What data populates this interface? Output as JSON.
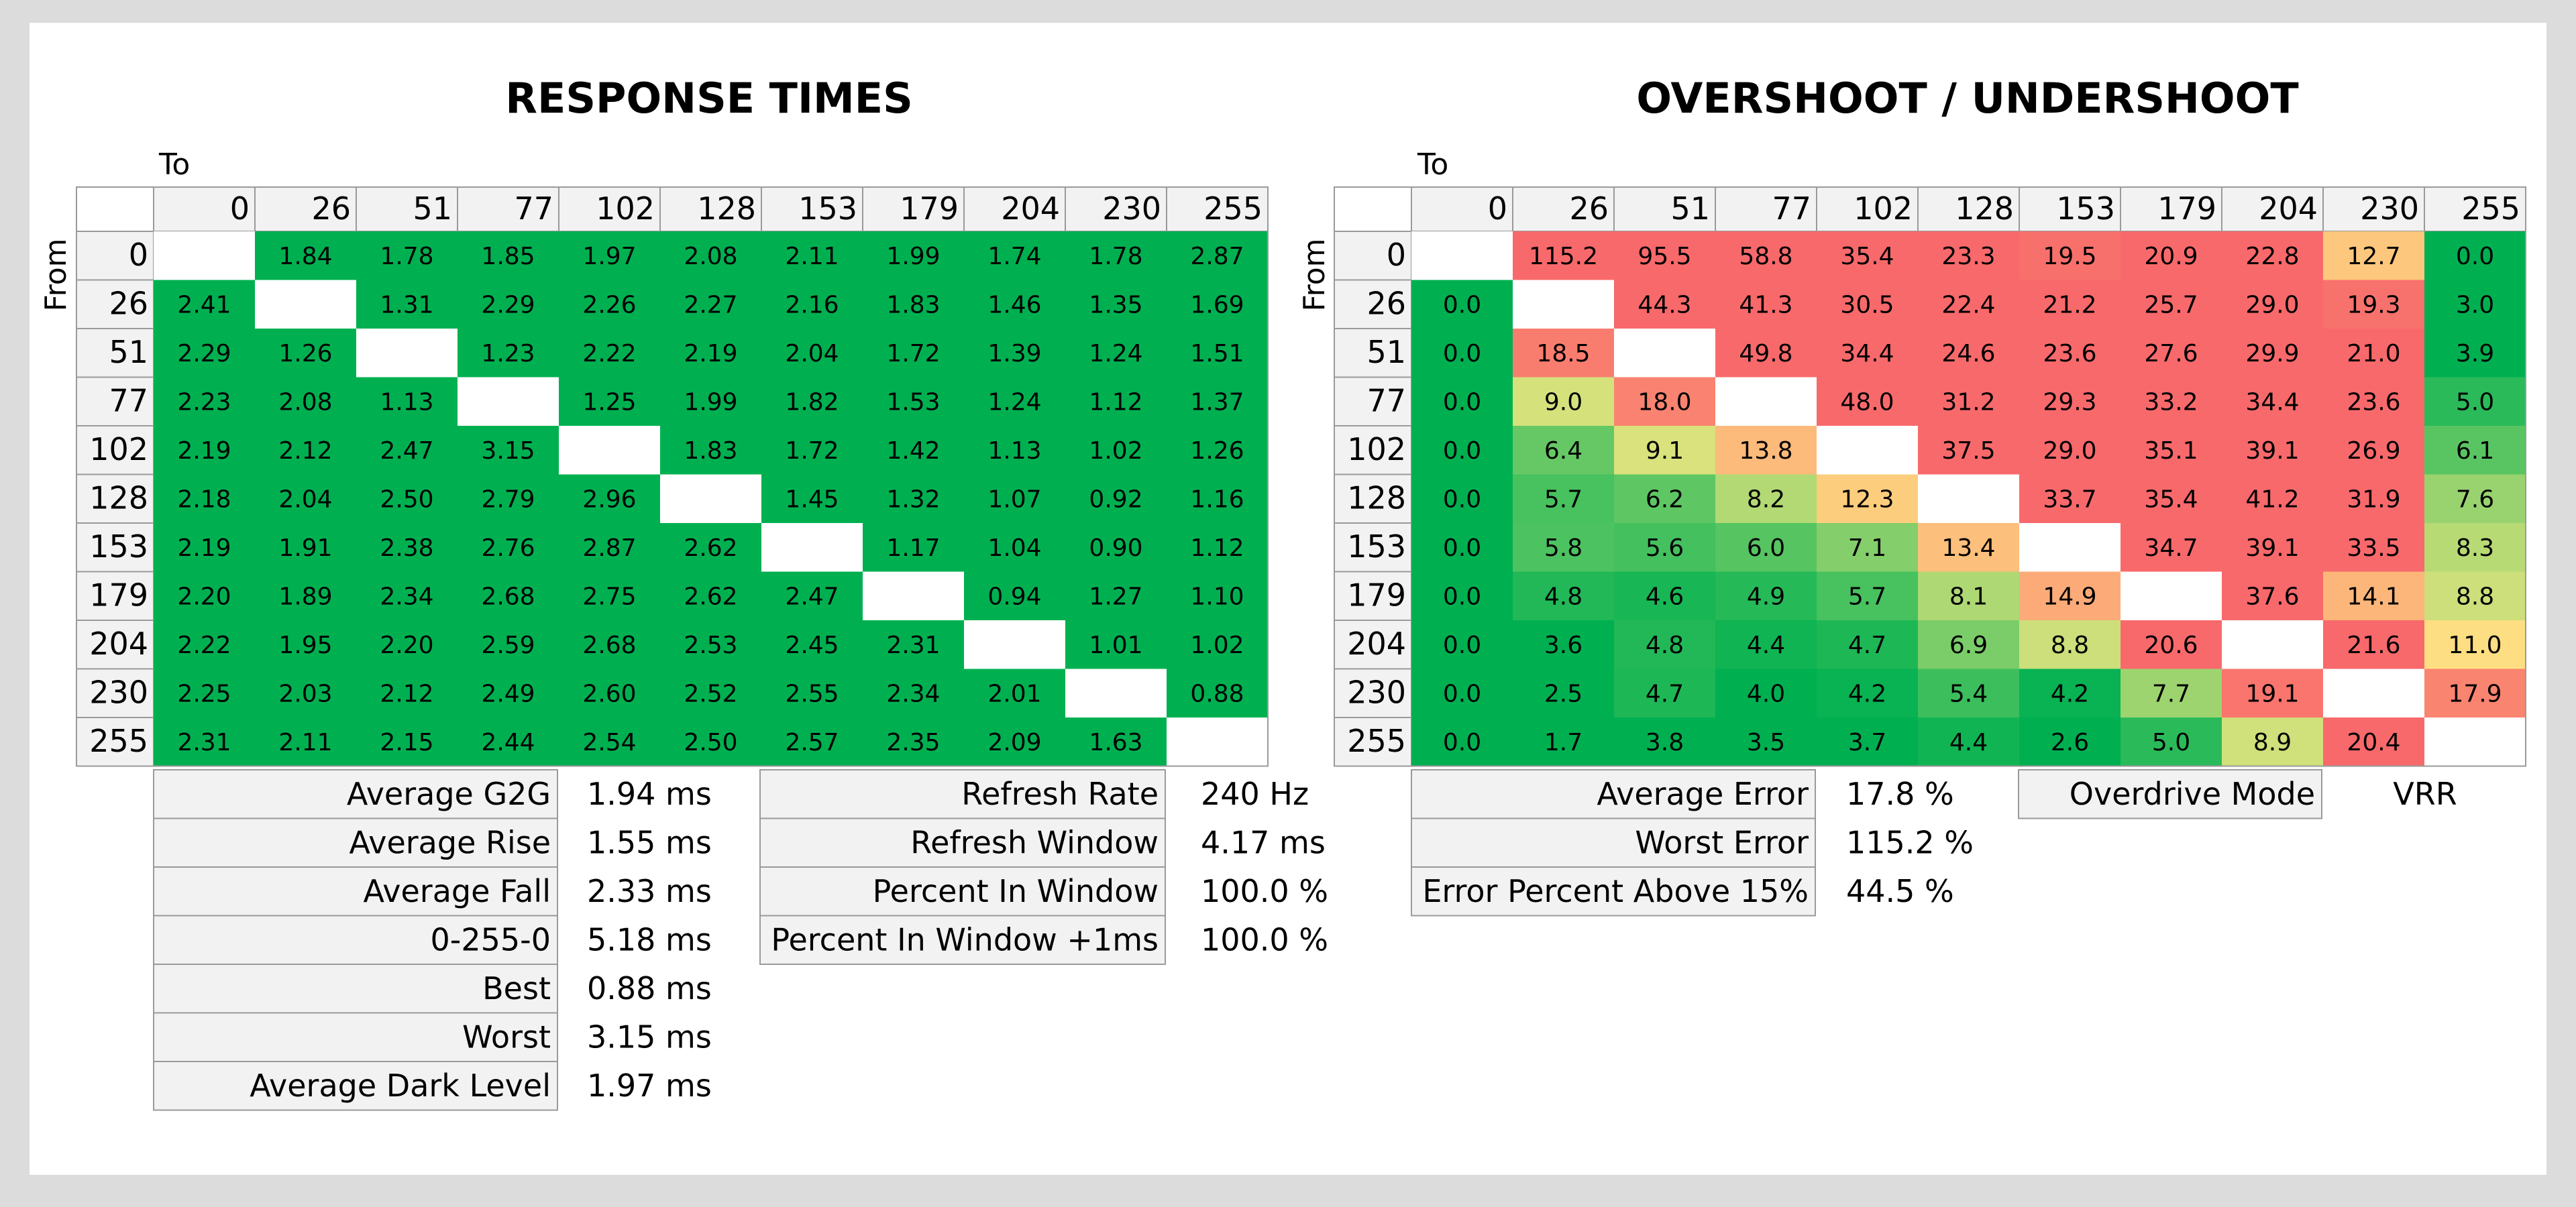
{
  "response_section": {
    "title": "RESPONSE TIMES",
    "to_label": "To",
    "from_label": "From"
  },
  "overshoot_section": {
    "title": "OVERSHOOT / UNDERSHOOT",
    "to_label": "To",
    "from_label": "From"
  },
  "chart_data": [
    {
      "type": "heatmap",
      "title": "RESPONSE TIMES",
      "xlabel": "To",
      "ylabel": "From",
      "x": [
        "0",
        "26",
        "51",
        "77",
        "102",
        "128",
        "153",
        "179",
        "204",
        "230",
        "255"
      ],
      "y": [
        "0",
        "26",
        "51",
        "77",
        "102",
        "128",
        "153",
        "179",
        "204",
        "230",
        "255"
      ],
      "values": [
        [
          null,
          "1.84",
          "1.78",
          "1.85",
          "1.97",
          "2.08",
          "2.11",
          "1.99",
          "1.74",
          "1.78",
          "2.87"
        ],
        [
          "2.41",
          null,
          "1.31",
          "2.29",
          "2.26",
          "2.27",
          "2.16",
          "1.83",
          "1.46",
          "1.35",
          "1.69"
        ],
        [
          "2.29",
          "1.26",
          null,
          "1.23",
          "2.22",
          "2.19",
          "2.04",
          "1.72",
          "1.39",
          "1.24",
          "1.51"
        ],
        [
          "2.23",
          "2.08",
          "1.13",
          null,
          "1.25",
          "1.99",
          "1.82",
          "1.53",
          "1.24",
          "1.12",
          "1.37"
        ],
        [
          "2.19",
          "2.12",
          "2.47",
          "3.15",
          null,
          "1.83",
          "1.72",
          "1.42",
          "1.13",
          "1.02",
          "1.26"
        ],
        [
          "2.18",
          "2.04",
          "2.50",
          "2.79",
          "2.96",
          null,
          "1.45",
          "1.32",
          "1.07",
          "0.92",
          "1.16"
        ],
        [
          "2.19",
          "1.91",
          "2.38",
          "2.76",
          "2.87",
          "2.62",
          null,
          "1.17",
          "1.04",
          "0.90",
          "1.12"
        ],
        [
          "2.20",
          "1.89",
          "2.34",
          "2.68",
          "2.75",
          "2.62",
          "2.47",
          null,
          "0.94",
          "1.27",
          "1.10"
        ],
        [
          "2.22",
          "1.95",
          "2.20",
          "2.59",
          "2.68",
          "2.53",
          "2.45",
          "2.31",
          null,
          "1.01",
          "1.02"
        ],
        [
          "2.25",
          "2.03",
          "2.12",
          "2.49",
          "2.60",
          "2.52",
          "2.55",
          "2.34",
          "2.01",
          null,
          "0.88"
        ],
        [
          "2.31",
          "2.11",
          "2.15",
          "2.44",
          "2.54",
          "2.50",
          "2.57",
          "2.35",
          "2.09",
          "1.63",
          null
        ]
      ]
    },
    {
      "type": "heatmap",
      "title": "OVERSHOOT / UNDERSHOOT",
      "xlabel": "To",
      "ylabel": "From",
      "x": [
        "0",
        "26",
        "51",
        "77",
        "102",
        "128",
        "153",
        "179",
        "204",
        "230",
        "255"
      ],
      "y": [
        "0",
        "26",
        "51",
        "77",
        "102",
        "128",
        "153",
        "179",
        "204",
        "230",
        "255"
      ],
      "values": [
        [
          null,
          "115.2",
          "95.5",
          "58.8",
          "35.4",
          "23.3",
          "19.5",
          "20.9",
          "22.8",
          "12.7",
          "0.0"
        ],
        [
          "0.0",
          null,
          "44.3",
          "41.3",
          "30.5",
          "22.4",
          "21.2",
          "25.7",
          "29.0",
          "19.3",
          "3.0"
        ],
        [
          "0.0",
          "18.5",
          null,
          "49.8",
          "34.4",
          "24.6",
          "23.6",
          "27.6",
          "29.9",
          "21.0",
          "3.9"
        ],
        [
          "0.0",
          "9.0",
          "18.0",
          null,
          "48.0",
          "31.2",
          "29.3",
          "33.2",
          "34.4",
          "23.6",
          "5.0"
        ],
        [
          "0.0",
          "6.4",
          "9.1",
          "13.8",
          null,
          "37.5",
          "29.0",
          "35.1",
          "39.1",
          "26.9",
          "6.1"
        ],
        [
          "0.0",
          "5.7",
          "6.2",
          "8.2",
          "12.3",
          null,
          "33.7",
          "35.4",
          "41.2",
          "31.9",
          "7.6"
        ],
        [
          "0.0",
          "5.8",
          "5.6",
          "6.0",
          "7.1",
          "13.4",
          null,
          "34.7",
          "39.1",
          "33.5",
          "8.3"
        ],
        [
          "0.0",
          "4.8",
          "4.6",
          "4.9",
          "5.7",
          "8.1",
          "14.9",
          null,
          "37.6",
          "14.1",
          "8.8"
        ],
        [
          "0.0",
          "3.6",
          "4.8",
          "4.4",
          "4.7",
          "6.9",
          "8.8",
          "20.6",
          null,
          "21.6",
          "11.0"
        ],
        [
          "0.0",
          "2.5",
          "4.7",
          "4.0",
          "4.2",
          "5.4",
          "4.2",
          "7.7",
          "19.1",
          null,
          "17.9"
        ],
        [
          "0.0",
          "1.7",
          "3.8",
          "3.5",
          "3.7",
          "4.4",
          "2.6",
          "5.0",
          "8.9",
          "20.4",
          null
        ]
      ]
    }
  ],
  "stats": {
    "response": [
      {
        "label": "Average G2G",
        "value": "1.94 ms"
      },
      {
        "label": "Average Rise",
        "value": "1.55 ms"
      },
      {
        "label": "Average Fall",
        "value": "2.33 ms"
      },
      {
        "label": "0-255-0",
        "value": "5.18 ms"
      },
      {
        "label": "Best",
        "value": "0.88 ms"
      },
      {
        "label": "Worst",
        "value": "3.15 ms"
      },
      {
        "label": "Average Dark Level",
        "value": "1.97 ms"
      }
    ],
    "refresh": [
      {
        "label": "Refresh Rate",
        "value": "240 Hz"
      },
      {
        "label": "Refresh Window",
        "value": "4.17 ms"
      },
      {
        "label": "Percent In Window",
        "value": "100.0 %"
      },
      {
        "label": "Percent In Window +1ms",
        "value": "100.0 %"
      }
    ],
    "error": [
      {
        "label": "Average Error",
        "value": "17.8 %"
      },
      {
        "label": "Worst Error",
        "value": "115.2 %"
      },
      {
        "label": "Error Percent Above 15%",
        "value": "44.5 %"
      }
    ],
    "mode": [
      {
        "label": "Overdrive Mode",
        "value": "VRR"
      }
    ]
  },
  "colors": {
    "page_bg": "#dcdcdc",
    "card_bg": "#ffffff",
    "header_cell_bg": "#f2f2f2",
    "cell_border": "#9a9a9a",
    "green": "#00b050",
    "yellow": "#ffeb84",
    "red": "#f8696b"
  }
}
